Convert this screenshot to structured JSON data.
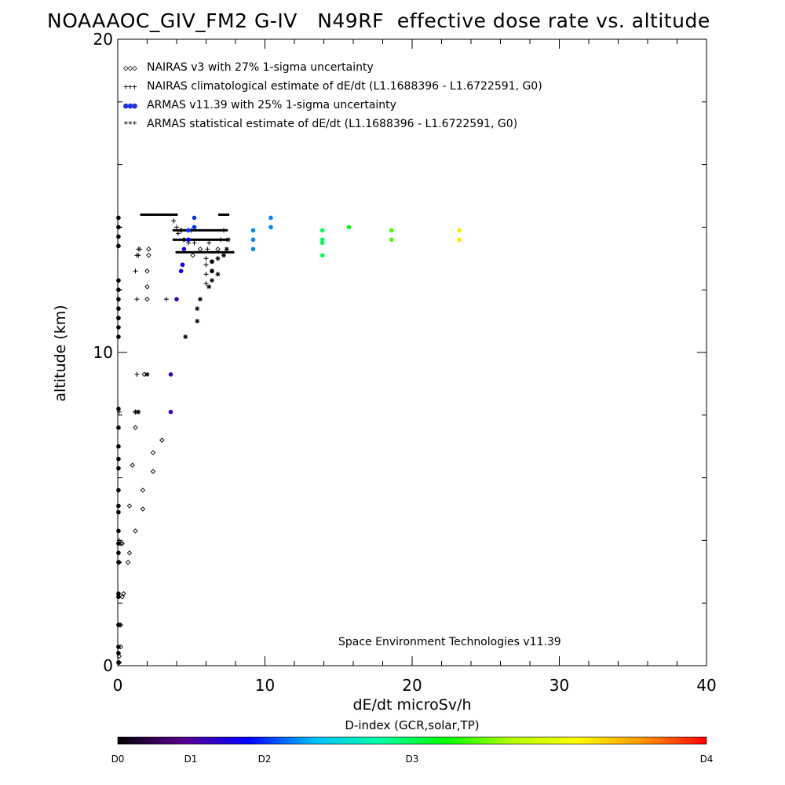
{
  "chart_data": {
    "type": "scatter",
    "title": "NOAAAOC_GIV_FM2 G-IV   N49RF  effective dose rate vs. altitude",
    "xlabel": "dE/dt microSv/h",
    "ylabel": "altitude (km)",
    "xlim": [
      0,
      40
    ],
    "ylim": [
      0,
      20
    ],
    "x_ticks": [
      0,
      10,
      20,
      30,
      40
    ],
    "y_ticks": [
      0,
      10,
      20
    ],
    "legend": [
      {
        "symbol": "◇◇◇",
        "label": "NAIRAS v3 with 27% 1-sigma uncertainty"
      },
      {
        "symbol": "+++",
        "label": "NAIRAS climatological estimate of dE/dt (L1.1688396 - L1.6722591, G0)"
      },
      {
        "symbol": "●●●",
        "label": "ARMAS v11.39 with 25% 1-sigma uncertainty"
      },
      {
        "symbol": "***",
        "label": "ARMAS statistical estimate of dE/dt (L1.1688396 - L1.6722591, G0)"
      }
    ],
    "footer": "Space Environment Technologies v11.39",
    "colorbar": {
      "label": "D-index (GCR,solar,TP)",
      "ticks": [
        {
          "label": "D0",
          "value": 0
        },
        {
          "label": "D1",
          "value": 0.25
        },
        {
          "label": "D2",
          "value": 0.5
        },
        {
          "label": "D3",
          "value": 1.0
        },
        {
          "label": "D4",
          "value": 2.0
        }
      ],
      "colors": [
        "#000000",
        "#5a0091",
        "#0000ff",
        "#00bfff",
        "#00ffaa",
        "#00ff00",
        "#b0ff00",
        "#ffff00",
        "#ff9900",
        "#ff0000"
      ]
    },
    "series": [
      {
        "name": "NAIRAS v3 with 27% 1-sigma uncertainty",
        "marker": "diamond",
        "points": [
          [
            0.1,
            0.1
          ],
          [
            0.1,
            0.3
          ],
          [
            0.2,
            0.6
          ],
          [
            0.1,
            1.3
          ],
          [
            0.2,
            1.3
          ],
          [
            0.3,
            2.2
          ],
          [
            0.4,
            2.3
          ],
          [
            0.1,
            3.3
          ],
          [
            0.7,
            3.3
          ],
          [
            0.8,
            3.6
          ],
          [
            0.2,
            3.9
          ],
          [
            0.3,
            3.9
          ],
          [
            1.2,
            4.3
          ],
          [
            1.7,
            5.0
          ],
          [
            0.8,
            5.1
          ],
          [
            1.7,
            5.6
          ],
          [
            2.4,
            6.2
          ],
          [
            1.0,
            6.4
          ],
          [
            2.4,
            6.8
          ],
          [
            3.0,
            7.2
          ],
          [
            1.2,
            7.6
          ],
          [
            1.2,
            8.1
          ],
          [
            1.8,
            9.3
          ],
          [
            2.0,
            11.7
          ],
          [
            2.0,
            12.1
          ],
          [
            2.0,
            12.6
          ],
          [
            2.1,
            13.1
          ],
          [
            2.1,
            13.3
          ],
          [
            4.3,
            13.9
          ],
          [
            4.5,
            13.6
          ],
          [
            5.1,
            13.1
          ],
          [
            5.6,
            13.3
          ],
          [
            6.4,
            12.6
          ],
          [
            6.4,
            12.9
          ],
          [
            6.8,
            13.3
          ]
        ]
      },
      {
        "name": "NAIRAS climatological estimate of dE/dt (L1.1688396 - L1.6722591, G0)",
        "marker": "plus",
        "points": [
          [
            0.1,
            0.1
          ],
          [
            0.1,
            4.0
          ],
          [
            0.1,
            8.1
          ],
          [
            1.2,
            8.1
          ],
          [
            1.3,
            9.3
          ],
          [
            3.3,
            11.7
          ],
          [
            1.3,
            11.7
          ],
          [
            1.2,
            12.6
          ],
          [
            1.3,
            13.1
          ],
          [
            1.4,
            13.3
          ],
          [
            1.4,
            13.1
          ],
          [
            1.5,
            13.3
          ],
          [
            4.0,
            14.0
          ],
          [
            3.8,
            14.2
          ],
          [
            4.1,
            13.8
          ],
          [
            4.8,
            13.5
          ],
          [
            5.2,
            13.5
          ],
          [
            5.0,
            13.9
          ],
          [
            6.2,
            13.5
          ],
          [
            6.1,
            13.3
          ],
          [
            6.0,
            13.0
          ],
          [
            6.0,
            12.8
          ],
          [
            6.0,
            12.5
          ],
          [
            6.0,
            12.2
          ],
          [
            7.0,
            13.6
          ],
          [
            7.2,
            13.9
          ]
        ]
      },
      {
        "name": "ARMAS v11.39 with 25% 1-sigma uncertainty",
        "marker": "dot",
        "points": [
          [
            0.05,
            14.3
          ],
          [
            0.05,
            14.0
          ],
          [
            0.05,
            13.7
          ],
          [
            0.05,
            13.4
          ],
          [
            0.05,
            12.3
          ],
          [
            0.05,
            12.0
          ],
          [
            0.05,
            11.7
          ],
          [
            0.05,
            11.4
          ],
          [
            0.05,
            11.1
          ],
          [
            0.05,
            10.8
          ],
          [
            0.05,
            10.5
          ],
          [
            0.05,
            8.2
          ],
          [
            0.05,
            7.6
          ],
          [
            0.05,
            7.0
          ],
          [
            0.05,
            6.6
          ],
          [
            0.05,
            6.3
          ],
          [
            0.05,
            5.6
          ],
          [
            0.05,
            5.1
          ],
          [
            0.05,
            4.9
          ],
          [
            0.05,
            4.3
          ],
          [
            0.05,
            3.9
          ],
          [
            0.05,
            3.6
          ],
          [
            0.05,
            3.3
          ],
          [
            0.05,
            2.3
          ],
          [
            0.05,
            2.2
          ],
          [
            0.05,
            1.3
          ],
          [
            0.05,
            0.6
          ],
          [
            0.05,
            0.4
          ],
          [
            0.05,
            0.1
          ],
          [
            3.6,
            8.1
          ],
          [
            3.6,
            9.3
          ],
          [
            4.0,
            11.7
          ],
          [
            4.3,
            12.6
          ],
          [
            4.4,
            12.8
          ],
          [
            4.5,
            13.3
          ],
          [
            4.8,
            13.6
          ],
          [
            4.8,
            13.9
          ],
          [
            5.2,
            14.3
          ],
          [
            5.2,
            14.0
          ],
          [
            9.2,
            13.9
          ],
          [
            9.2,
            13.6
          ],
          [
            9.2,
            13.3
          ],
          [
            10.4,
            14.3
          ],
          [
            10.4,
            14.0
          ],
          [
            13.9,
            13.9
          ],
          [
            13.9,
            13.6
          ],
          [
            13.9,
            13.5
          ],
          [
            13.9,
            13.1
          ],
          [
            15.7,
            14.0
          ],
          [
            18.6,
            13.9
          ],
          [
            18.6,
            13.6
          ],
          [
            23.2,
            13.9
          ],
          [
            23.2,
            13.6
          ]
        ],
        "color_index": [
          0,
          0,
          0,
          0,
          0,
          0,
          0,
          0,
          0,
          0,
          0,
          0,
          0,
          0,
          0,
          0,
          0,
          0,
          0,
          0,
          0,
          0,
          0,
          0,
          0,
          0,
          0,
          0,
          0,
          0.15,
          0.15,
          0.15,
          0.2,
          0.2,
          0.2,
          0.22,
          0.25,
          0.25,
          0.25,
          0.3,
          0.3,
          0.3,
          0.3,
          0.3,
          0.5,
          0.5,
          0.5,
          0.5,
          0.55,
          0.6,
          0.6,
          0.8,
          0.8
        ]
      },
      {
        "name": "ARMAS statistical estimate of dE/dt (L1.1688396 - L1.6722591, G0)",
        "marker": "asterisk",
        "points": [
          [
            2.0,
            9.3
          ],
          [
            1.4,
            8.1
          ],
          [
            4.6,
            10.5
          ],
          [
            5.4,
            11.0
          ],
          [
            5.4,
            11.4
          ],
          [
            5.6,
            11.7
          ],
          [
            6.2,
            12.1
          ],
          [
            6.4,
            12.3
          ],
          [
            6.4,
            12.6
          ],
          [
            6.4,
            12.9
          ],
          [
            6.8,
            12.5
          ],
          [
            6.8,
            13.0
          ],
          [
            7.2,
            13.1
          ],
          [
            7.4,
            13.3
          ],
          [
            7.5,
            13.6
          ]
        ]
      }
    ],
    "row_segments": [
      {
        "x_start": 1.6,
        "x_end": 4.0,
        "y": 14.4
      },
      {
        "x_start": 6.9,
        "x_end": 7.5,
        "y": 14.4
      },
      {
        "x_start": 3.8,
        "x_end": 7.5,
        "y": 13.9
      },
      {
        "x_start": 3.8,
        "x_end": 7.5,
        "y": 13.6
      },
      {
        "x_start": 4.0,
        "x_end": 7.9,
        "y": 13.2
      }
    ]
  }
}
